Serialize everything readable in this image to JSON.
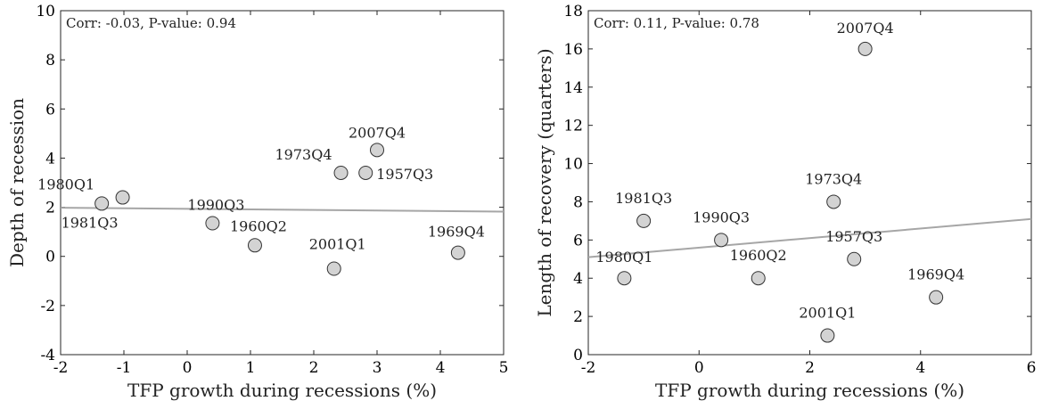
{
  "chart_data": [
    {
      "type": "scatter",
      "title": "",
      "xlabel": "TFP growth during recessions (%)",
      "ylabel": "Depth of recession",
      "xlim": [
        -2,
        5
      ],
      "ylim": [
        -4,
        10
      ],
      "xticks": [
        -2,
        -1,
        0,
        1,
        2,
        3,
        4,
        5
      ],
      "yticks": [
        -4,
        -2,
        0,
        2,
        4,
        6,
        8,
        10
      ],
      "annotation": "Corr: -0.03, P-value: 0.94",
      "grid": false,
      "marker_color": "#d3d3d3",
      "fit_line_color": "#a6a6a6",
      "fit_line": [
        {
          "x": -2,
          "y": 1.98
        },
        {
          "x": 5,
          "y": 1.82
        }
      ],
      "points": [
        {
          "label": "1980Q1",
          "x": -1.35,
          "y": 2.15
        },
        {
          "label": "1981Q3",
          "x": -1.02,
          "y": 2.4
        },
        {
          "label": "1990Q3",
          "x": 0.4,
          "y": 1.35
        },
        {
          "label": "1960Q2",
          "x": 1.07,
          "y": 0.45
        },
        {
          "label": "2001Q1",
          "x": 2.32,
          "y": -0.5
        },
        {
          "label": "1973Q4",
          "x": 2.43,
          "y": 3.4
        },
        {
          "label": "1957Q3",
          "x": 2.82,
          "y": 3.4
        },
        {
          "label": "2007Q4",
          "x": 3.0,
          "y": 4.33
        },
        {
          "label": "1969Q4",
          "x": 4.28,
          "y": 0.15
        }
      ]
    },
    {
      "type": "scatter",
      "title": "",
      "xlabel": "TFP growth during recessions (%)",
      "ylabel": "Length of recovery (quarters)",
      "xlim": [
        -2,
        6
      ],
      "ylim": [
        0,
        18
      ],
      "xticks": [
        -2,
        0,
        2,
        4,
        6
      ],
      "yticks": [
        0,
        2,
        4,
        6,
        8,
        10,
        12,
        14,
        16,
        18
      ],
      "annotation": "Corr: 0.11, P-value: 0.78",
      "grid": false,
      "marker_color": "#d3d3d3",
      "fit_line_color": "#a6a6a6",
      "fit_line": [
        {
          "x": -2,
          "y": 5.1
        },
        {
          "x": 6,
          "y": 7.1
        }
      ],
      "points": [
        {
          "label": "1980Q1",
          "x": -1.35,
          "y": 4
        },
        {
          "label": "1981Q3",
          "x": -1.0,
          "y": 7
        },
        {
          "label": "1990Q3",
          "x": 0.4,
          "y": 6
        },
        {
          "label": "1960Q2",
          "x": 1.07,
          "y": 4
        },
        {
          "label": "2001Q1",
          "x": 2.32,
          "y": 1
        },
        {
          "label": "1973Q4",
          "x": 2.43,
          "y": 8
        },
        {
          "label": "1957Q3",
          "x": 2.8,
          "y": 5
        },
        {
          "label": "2007Q4",
          "x": 3.0,
          "y": 16
        },
        {
          "label": "1969Q4",
          "x": 4.28,
          "y": 3
        }
      ]
    }
  ]
}
